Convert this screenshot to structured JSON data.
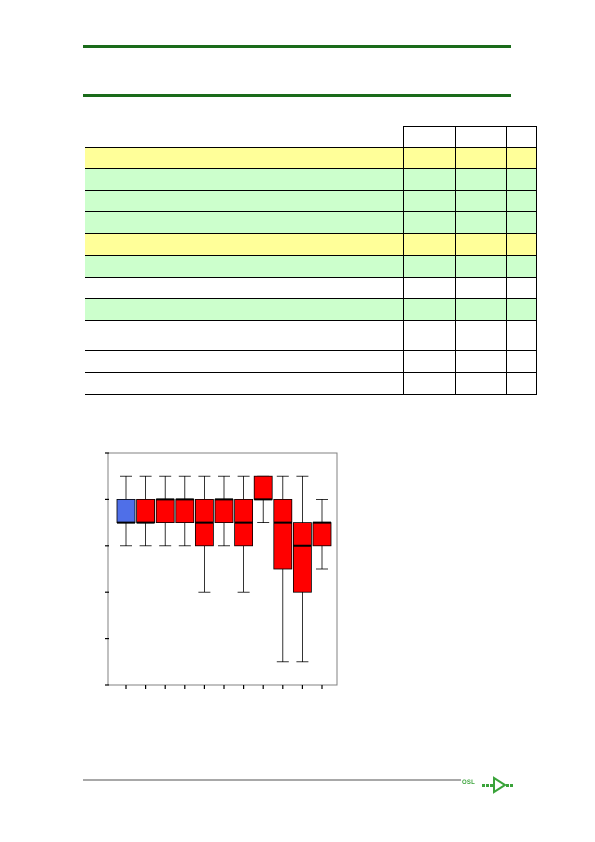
{
  "table": {
    "rows": [
      {
        "color": "#ffff99"
      },
      {
        "color": "#ccffcc"
      },
      {
        "color": "#ccffcc"
      },
      {
        "color": "#ccffcc"
      },
      {
        "color": "#ffff99"
      },
      {
        "color": "#ccffcc"
      },
      {
        "color": "#ffffff"
      },
      {
        "color": "#ccffcc"
      },
      {
        "color": "#ffffff"
      },
      {
        "color": "#ffffff"
      },
      {
        "color": "#ffffff"
      }
    ]
  },
  "chart_data": {
    "type": "box",
    "title": "",
    "xlabel": "",
    "ylabel": "",
    "ylim": [
      0,
      5
    ],
    "series": [
      {
        "min": 3,
        "q1": 3.5,
        "median": 3.5,
        "q3": 4,
        "max": 4.5,
        "color": "#4f6fe8"
      },
      {
        "min": 3,
        "q1": 3.5,
        "median": 3.5,
        "q3": 4,
        "max": 4.5,
        "color": "#ff0000"
      },
      {
        "min": 3,
        "q1": 3.5,
        "median": 4,
        "q3": 4,
        "max": 4.5,
        "color": "#ff0000"
      },
      {
        "min": 3,
        "q1": 3.5,
        "median": 4,
        "q3": 4,
        "max": 4.5,
        "color": "#ff0000"
      },
      {
        "min": 2,
        "q1": 3,
        "median": 3.5,
        "q3": 4,
        "max": 4.5,
        "color": "#ff0000"
      },
      {
        "min": 3,
        "q1": 3.5,
        "median": 4,
        "q3": 4,
        "max": 4.5,
        "color": "#ff0000"
      },
      {
        "min": 2,
        "q1": 3,
        "median": 3.5,
        "q3": 4,
        "max": 4.5,
        "color": "#ff0000"
      },
      {
        "min": 3.5,
        "q1": 4,
        "median": 4,
        "q3": 4.5,
        "max": 4.5,
        "color": "#ff0000"
      },
      {
        "min": 0.5,
        "q1": 2.5,
        "median": 3.5,
        "q3": 4,
        "max": 4.5,
        "color": "#ff0000"
      },
      {
        "min": 0.5,
        "q1": 2,
        "median": 3,
        "q3": 3.5,
        "max": 4.5,
        "color": "#ff0000"
      },
      {
        "min": 2.5,
        "q1": 3,
        "median": 3.5,
        "q3": 3.5,
        "max": 4,
        "color": "#ff0000"
      }
    ]
  },
  "logo": {
    "text": "OSL"
  }
}
